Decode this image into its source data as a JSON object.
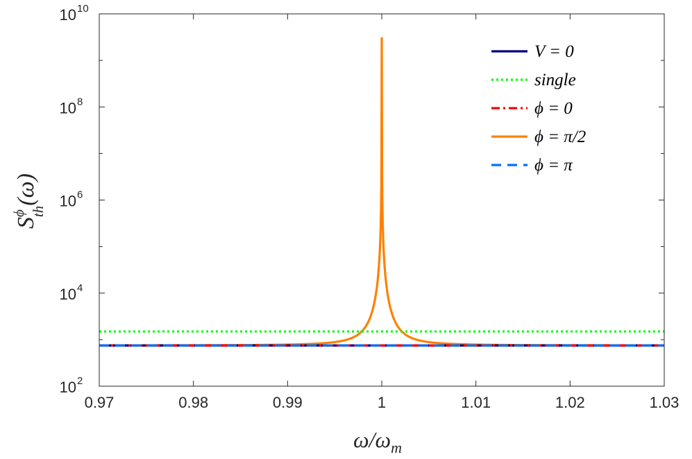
{
  "chart_data": {
    "type": "line",
    "yscale": "log",
    "xlabel": {
      "base": "ω/ω",
      "sub": "m"
    },
    "ylabel": {
      "main": "S",
      "sup": "ϕ",
      "sub": "th",
      "arg": "(ω)"
    },
    "xlim": [
      0.97,
      1.03
    ],
    "ylim_exponents": [
      2,
      10
    ],
    "x_ticks": [
      "0.97",
      "0.98",
      "0.99",
      "1",
      "1.01",
      "1.02",
      "1.03"
    ],
    "y_ticks": [
      {
        "base": "10",
        "exp": "2"
      },
      {
        "base": "10",
        "exp": "4"
      },
      {
        "base": "10",
        "exp": "6"
      },
      {
        "base": "10",
        "exp": "8"
      },
      {
        "base": "10",
        "exp": "10"
      }
    ],
    "legend_position": "top-right",
    "series": [
      {
        "name": "V = 0",
        "color": "#00007f",
        "style": "solid",
        "kind": "constant",
        "value": 750
      },
      {
        "name": "single",
        "color": "#00ff00",
        "style": "dotted",
        "kind": "constant",
        "value": 1500
      },
      {
        "name": "ϕ = 0",
        "color": "#ff0000",
        "style": "dashdot",
        "kind": "constant",
        "value": 750
      },
      {
        "name": "ϕ = π/2",
        "color": "#ff8000",
        "style": "solid",
        "kind": "resonance",
        "baseline": 750,
        "peak_x": 1.0,
        "peak_value": 3000000000,
        "amplitude": 0.0034
      },
      {
        "name": "ϕ = π",
        "color": "#0072ff",
        "style": "dashed",
        "kind": "constant",
        "value": 750
      }
    ]
  }
}
